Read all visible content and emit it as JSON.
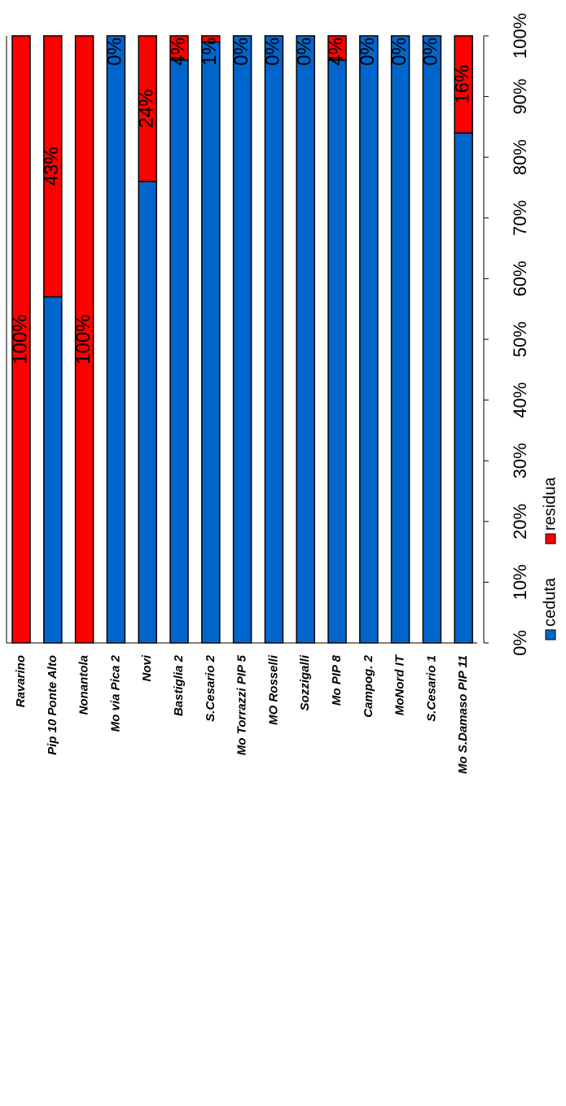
{
  "chart_data": {
    "type": "bar",
    "orientation": "horizontal-stacked-100",
    "title": "",
    "xlabel": "",
    "ylabel": "",
    "categories": [
      "Ravarino",
      "Pip 10 Ponte Alto",
      "Nonantola",
      "Mo via Pica 2",
      "Novi",
      "Bastiglia 2",
      "S.Cesario 2",
      "Mo Torrazzi PIP 5",
      "MO Rosselli",
      "Sozzigalli",
      "Mo PIP 8",
      "Campog. 2",
      "MoNord IT",
      "S.Cesario 1",
      "Mo S.Damaso PIP 11"
    ],
    "series": [
      {
        "name": "ceduta",
        "color": "#0066CC",
        "values": [
          0,
          57,
          0,
          100,
          76,
          96,
          99,
          100,
          100,
          100,
          96,
          100,
          100,
          100,
          84
        ]
      },
      {
        "name": "residua",
        "color": "#FF0000",
        "values": [
          100,
          43,
          100,
          0,
          24,
          4,
          1,
          0,
          0,
          0,
          4,
          0,
          0,
          0,
          16
        ]
      }
    ],
    "data_labels": [
      "100%",
      "43%",
      "100%",
      "0%",
      "24%",
      "4%",
      "1%",
      "0%",
      "0%",
      "0%",
      "4%",
      "0%",
      "0%",
      "0%",
      "16%"
    ],
    "ticks": [
      "0%",
      "10%",
      "20%",
      "30%",
      "40%",
      "50%",
      "60%",
      "70%",
      "80%",
      "90%",
      "100%"
    ],
    "xlim": [
      0,
      100
    ],
    "grid": false,
    "legend_position": "bottom"
  }
}
